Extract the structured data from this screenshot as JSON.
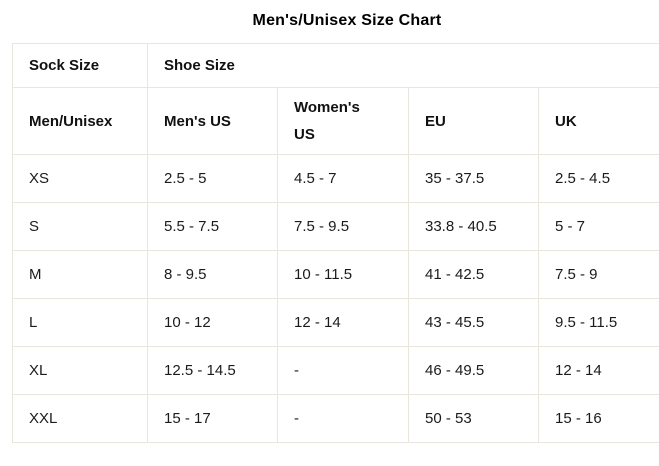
{
  "chart_data": {
    "type": "table",
    "title": "Men's/Unisex Size Chart",
    "group_headers": [
      "Sock Size",
      "Shoe Size"
    ],
    "columns": [
      "Men/Unisex",
      "Men's US",
      "Women's US",
      "EU",
      "UK"
    ],
    "rows": [
      [
        "XS",
        "2.5 - 5",
        "4.5 - 7",
        "35 - 37.5",
        "2.5 - 4.5"
      ],
      [
        "S",
        "5.5 - 7.5",
        "7.5 - 9.5",
        "33.8 - 40.5",
        "5 - 7"
      ],
      [
        "M",
        "8 - 9.5",
        "10 - 11.5",
        "41 - 42.5",
        "7.5 - 9"
      ],
      [
        "L",
        "10 - 12",
        "12 - 14",
        "43 - 45.5",
        "9.5 - 11.5"
      ],
      [
        "XL",
        "12.5 - 14.5",
        "-",
        "46 - 49.5",
        "12 - 14"
      ],
      [
        "XXL",
        "15 - 17",
        "-",
        "50 - 53",
        "15 - 16"
      ]
    ],
    "layout": {
      "grid": "all-borders",
      "header_rows": 2,
      "right_edge_cut_off": true
    }
  },
  "colors": {
    "background": "#ffffff",
    "border": "#e9e6dd",
    "text": "#1b1b1b",
    "title_text": "#000000"
  }
}
